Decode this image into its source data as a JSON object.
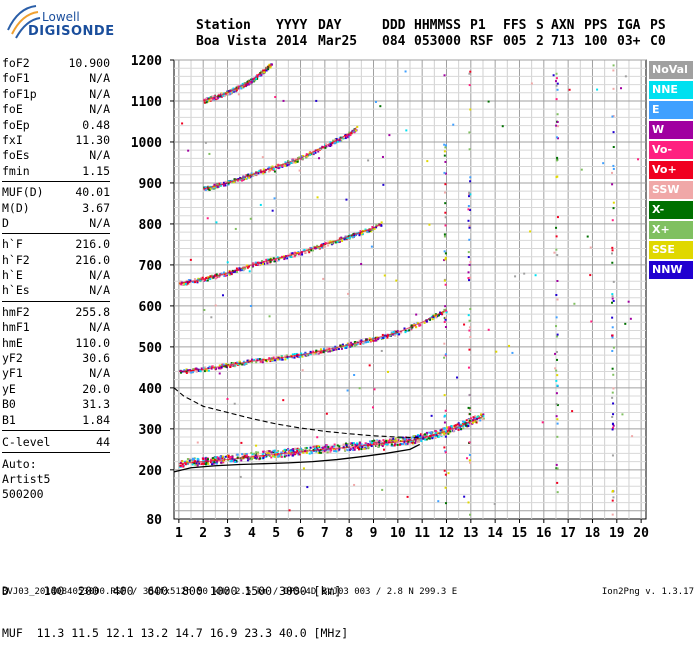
{
  "logo": {
    "line1": "Lowell",
    "line2": "DIGISONDE"
  },
  "header": {
    "labels": [
      "Station",
      "YYYY",
      "DAY",
      "DDD",
      "HHMMSS",
      "P1",
      "FFS",
      "S",
      "AXN",
      "PPS",
      "IGA",
      "PS"
    ],
    "values": [
      "Boa Vista",
      "2014",
      "Mar25",
      "084",
      "053000",
      "RSF",
      "005",
      "2",
      "713",
      "100",
      "03+",
      "C0"
    ]
  },
  "params_groups": [
    [
      [
        "foF2",
        "10.900"
      ],
      [
        "foF1",
        "N/A"
      ],
      [
        "foF1p",
        "N/A"
      ],
      [
        "foE",
        "N/A"
      ],
      [
        "foEp",
        "0.48"
      ],
      [
        "fxI",
        "11.30"
      ],
      [
        "foEs",
        "N/A"
      ],
      [
        "fmin",
        "1.15"
      ]
    ],
    [
      [
        "MUF(D)",
        "40.01"
      ],
      [
        "M(D)",
        "3.67"
      ],
      [
        "D",
        "N/A"
      ]
    ],
    [
      [
        "h`F",
        "216.0"
      ],
      [
        "h`F2",
        "216.0"
      ],
      [
        "h`E",
        "N/A"
      ],
      [
        "h`Es",
        "N/A"
      ]
    ],
    [
      [
        "hmF2",
        "255.8"
      ],
      [
        "hmF1",
        "N/A"
      ],
      [
        "hmE",
        "110.0"
      ],
      [
        "yF2",
        "30.6"
      ],
      [
        "yF1",
        "N/A"
      ],
      [
        "yE",
        "20.0"
      ],
      [
        "B0",
        "31.3"
      ],
      [
        "B1",
        "1.84"
      ]
    ]
  ],
  "clevel": {
    "label": "C-level",
    "value": "44"
  },
  "auto": [
    "Auto:",
    "Artist5",
    "500200"
  ],
  "legend": [
    {
      "label": "NoVal",
      "color": "#a0a0a0"
    },
    {
      "label": "NNE",
      "color": "#00e0f0"
    },
    {
      "label": "E",
      "color": "#40a0ff"
    },
    {
      "label": "W",
      "color": "#a000a0"
    },
    {
      "label": "Vo-",
      "color": "#ff2080"
    },
    {
      "label": "Vo+",
      "color": "#f00020"
    },
    {
      "label": "SSW",
      "color": "#f0a8a8"
    },
    {
      "label": "X-",
      "color": "#007000"
    },
    {
      "label": "X+",
      "color": "#80c060"
    },
    {
      "label": "SSE",
      "color": "#e0d800"
    },
    {
      "label": "NNW",
      "color": "#2000d0"
    }
  ],
  "footer": {
    "line1": "D     100  200  400  600  800 1000 1500 3000 [km]",
    "line2": "MUF  11.3 11.5 12.1 13.2 14.7 16.9 23.3 40.0 [MHz]",
    "fileinfo": "BVJ03_2014084053000.RSF / 384fx512h 50 kHz 2.5 km / DPS-4D BVJ03 003 / 2.8 N 299.3 E",
    "version": "Ion2Png v. 1.3.17"
  },
  "chart_data": {
    "type": "scatter",
    "xlim": [
      0.8,
      20.2
    ],
    "ylim": [
      80,
      1200
    ],
    "x_ticks": [
      1,
      2,
      3,
      4,
      5,
      6,
      7,
      8,
      9,
      10,
      11,
      12,
      13,
      14,
      15,
      16,
      17,
      18,
      19,
      20
    ],
    "y_ticks": [
      200,
      300,
      400,
      500,
      600,
      700,
      800,
      900,
      1000,
      1100,
      1200
    ],
    "y_bottom_label": "80",
    "grid": true,
    "traces": [
      {
        "name": "O-trace order 1",
        "x": [
          1.0,
          2.0,
          3.0,
          4.0,
          5.0,
          6.0,
          7.0,
          8.0,
          9.0,
          10.0,
          10.6,
          11.0,
          11.5,
          12.0,
          12.5,
          13.0,
          13.5
        ],
        "y": [
          215,
          220,
          225,
          232,
          238,
          244,
          250,
          255,
          262,
          268,
          272,
          278,
          285,
          295,
          305,
          318,
          330
        ]
      },
      {
        "name": "Order 2",
        "x": [
          1.0,
          2.0,
          3.0,
          4.0,
          5.0,
          6.0,
          7.0,
          8.0,
          9.0,
          10.0,
          11.0,
          11.5,
          12.0
        ],
        "y": [
          440,
          445,
          455,
          465,
          472,
          480,
          492,
          505,
          520,
          535,
          560,
          575,
          590
        ]
      },
      {
        "name": "Order 3",
        "x": [
          1.0,
          2.0,
          3.0,
          4.0,
          5.0,
          6.0,
          7.0,
          8.0,
          9.0,
          9.3
        ],
        "y": [
          655,
          665,
          680,
          700,
          715,
          730,
          750,
          770,
          790,
          800
        ]
      },
      {
        "name": "Order 4",
        "x": [
          2.0,
          3.0,
          4.0,
          5.0,
          6.0,
          7.0,
          8.0,
          8.3
        ],
        "y": [
          885,
          900,
          920,
          940,
          960,
          990,
          1020,
          1035
        ]
      },
      {
        "name": "Order 5",
        "x": [
          2.0,
          3.0,
          4.0,
          4.8
        ],
        "y": [
          1100,
          1120,
          1150,
          1190
        ]
      }
    ],
    "profile_solid": {
      "x": [
        0.8,
        1.5,
        2.5,
        3.5,
        4.5,
        5.5,
        6.5,
        7.5,
        8.5,
        9.5,
        10.5,
        10.9
      ],
      "y": [
        195,
        205,
        210,
        213,
        215,
        217,
        220,
        225,
        232,
        240,
        250,
        262
      ]
    },
    "profile_dashed": {
      "x": [
        0.8,
        1.2,
        2.0,
        3.0,
        4.0,
        5.0,
        6.0,
        7.0,
        8.0,
        9.0,
        10.0,
        10.9
      ],
      "y": [
        400,
        380,
        355,
        340,
        325,
        312,
        302,
        294,
        288,
        283,
        280,
        278
      ]
    },
    "vertical_columns": [
      {
        "x": 11.9
      },
      {
        "x": 12.9
      },
      {
        "x": 16.5
      },
      {
        "x": 18.8
      }
    ]
  }
}
